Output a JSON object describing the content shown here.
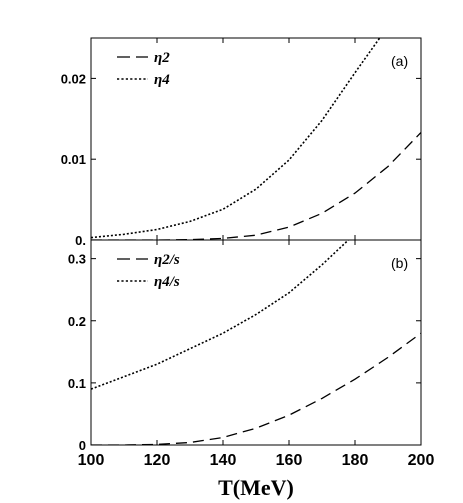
{
  "chart_data": [
    {
      "type": "line",
      "panel_tag": "(a)",
      "xlim": [
        100,
        200
      ],
      "ylim": [
        0,
        0.025
      ],
      "x_ticks": [
        100,
        120,
        140,
        160,
        180,
        200
      ],
      "y_ticks": [
        0,
        0.01,
        0.02
      ],
      "y_tick_labels": [
        "0.",
        "0.01",
        "0.02"
      ],
      "legend_position": "top-left",
      "series": [
        {
          "name": "η2",
          "style": "dashed",
          "x": [
            100,
            110,
            120,
            130,
            140,
            150,
            160,
            170,
            180,
            190,
            200
          ],
          "values": [
            0,
            0,
            0,
            5e-05,
            0.0002,
            0.0006,
            0.0016,
            0.0033,
            0.0058,
            0.0091,
            0.0133
          ]
        },
        {
          "name": "η4",
          "style": "dotted",
          "x": [
            100,
            110,
            120,
            130,
            140,
            150,
            160,
            170,
            180,
            188
          ],
          "values": [
            0.0003,
            0.0007,
            0.0013,
            0.0023,
            0.0038,
            0.0063,
            0.0099,
            0.0148,
            0.0207,
            0.0253
          ]
        }
      ]
    },
    {
      "type": "line",
      "panel_tag": "(b)",
      "xlabel": "T(MeV)",
      "xlim": [
        100,
        200
      ],
      "ylim": [
        0,
        0.33
      ],
      "x_ticks": [
        100,
        120,
        140,
        160,
        180,
        200
      ],
      "x_tick_labels": [
        "100",
        "120",
        "140",
        "160",
        "180",
        "200"
      ],
      "y_ticks": [
        0,
        0.1,
        0.2,
        0.3
      ],
      "y_tick_labels": [
        "0",
        "0.1",
        "0.2",
        "0.3"
      ],
      "legend_position": "top-left",
      "series": [
        {
          "name": "η2/s",
          "style": "dashed",
          "x": [
            100,
            110,
            120,
            130,
            140,
            150,
            160,
            170,
            180,
            190,
            200
          ],
          "values": [
            0,
            0,
            0.001,
            0.004,
            0.012,
            0.027,
            0.048,
            0.075,
            0.106,
            0.141,
            0.18
          ]
        },
        {
          "name": "η4/s",
          "style": "dotted",
          "x": [
            100,
            110,
            120,
            130,
            140,
            150,
            160,
            170,
            178
          ],
          "values": [
            0.09,
            0.11,
            0.13,
            0.155,
            0.18,
            0.21,
            0.245,
            0.29,
            0.33
          ]
        }
      ]
    }
  ]
}
